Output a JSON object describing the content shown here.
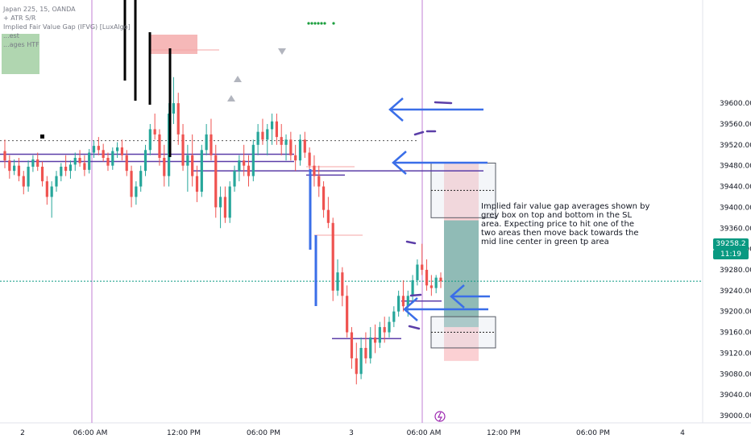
{
  "legend": {
    "symbol": "Japan 225, 15, OANDA",
    "line2": "+ ATR S/R",
    "line3": "Implied Fair Value Gap (IFVG) [LuxAlgo]",
    "line4": "...est",
    "line5": "...ages HTF"
  },
  "price_tag": {
    "price": "39258.2",
    "countdown": "11:19"
  },
  "annotation_text": "Implied fair value gap averages shown by grey box on top and bottom in the SL area. Expecting price to hit one of the two areas then move back towards the mid line center in green tp area",
  "colors": {
    "up": "#26a69a",
    "down": "#ef5350",
    "arrow": "#3a6ee8",
    "line": "#5b3ea8",
    "session": "#c17fd6",
    "tp": "#26a69a",
    "sl": "#f7a9ae",
    "current": "#089981"
  },
  "chart_data": {
    "type": "candlestick",
    "symbol": "Japan 225, 15, OANDA",
    "y_ticks": [
      39000,
      39040,
      39080,
      39120,
      39160,
      39200,
      39240,
      39280,
      39320,
      39360,
      39400,
      39440,
      39480,
      39520,
      39560,
      39600
    ],
    "ylim": [
      38990,
      39630
    ],
    "x_ticks": [
      "2",
      "06:00 AM",
      "12:00 PM",
      "06:00 PM",
      "3",
      "06:00 AM",
      "12:00 PM",
      "06:00 PM",
      "4"
    ],
    "current_price": 39258.2,
    "countdown": "11:19",
    "candles": [
      [
        39508,
        39530,
        39475,
        39490
      ],
      [
        39490,
        39500,
        39455,
        39470
      ],
      [
        39470,
        39492,
        39462,
        39480
      ],
      [
        39480,
        39495,
        39450,
        39460
      ],
      [
        39460,
        39470,
        39425,
        39440
      ],
      [
        39440,
        39490,
        39430,
        39478
      ],
      [
        39478,
        39500,
        39468,
        39492
      ],
      [
        39492,
        39505,
        39470,
        39478
      ],
      [
        39478,
        39488,
        39440,
        39450
      ],
      [
        39450,
        39460,
        39405,
        39420
      ],
      [
        39420,
        39450,
        39380,
        39440
      ],
      [
        39440,
        39470,
        39430,
        39460
      ],
      [
        39460,
        39485,
        39450,
        39478
      ],
      [
        39478,
        39500,
        39460,
        39470
      ],
      [
        39470,
        39490,
        39455,
        39482
      ],
      [
        39482,
        39505,
        39470,
        39495
      ],
      [
        39495,
        39510,
        39478,
        39485
      ],
      [
        39485,
        39500,
        39460,
        39472
      ],
      [
        39472,
        39512,
        39465,
        39505
      ],
      [
        39505,
        39528,
        39495,
        39518
      ],
      [
        39518,
        39535,
        39500,
        39510
      ],
      [
        39510,
        39522,
        39488,
        39495
      ],
      [
        39495,
        39505,
        39470,
        39480
      ],
      [
        39480,
        39515,
        39472,
        39508
      ],
      [
        39508,
        39525,
        39495,
        39515
      ],
      [
        39515,
        39530,
        39490,
        39500
      ],
      [
        39500,
        39510,
        39460,
        39470
      ],
      [
        39470,
        39480,
        39400,
        39420
      ],
      [
        39420,
        39450,
        39405,
        39440
      ],
      [
        39440,
        39480,
        39430,
        39470
      ],
      [
        39470,
        39520,
        39460,
        39510
      ],
      [
        39510,
        39560,
        39500,
        39550
      ],
      [
        39550,
        39580,
        39530,
        39540
      ],
      [
        39540,
        39550,
        39480,
        39495
      ],
      [
        39495,
        39520,
        39440,
        39460
      ],
      [
        39460,
        39600,
        39440,
        39580
      ],
      [
        39580,
        39650,
        39560,
        39600
      ],
      [
        39600,
        39620,
        39520,
        39540
      ],
      [
        39540,
        39560,
        39470,
        39480
      ],
      [
        39480,
        39520,
        39430,
        39500
      ],
      [
        39500,
        39540,
        39440,
        39460
      ],
      [
        39460,
        39480,
        39410,
        39430
      ],
      [
        39430,
        39520,
        39420,
        39510
      ],
      [
        39510,
        39560,
        39500,
        39540
      ],
      [
        39540,
        39570,
        39490,
        39500
      ],
      [
        39500,
        39520,
        39380,
        39400
      ],
      [
        39400,
        39440,
        39360,
        39420
      ],
      [
        39420,
        39440,
        39370,
        39380
      ],
      [
        39380,
        39450,
        39370,
        39440
      ],
      [
        39440,
        39480,
        39430,
        39470
      ],
      [
        39470,
        39500,
        39450,
        39490
      ],
      [
        39490,
        39520,
        39460,
        39480
      ],
      [
        39480,
        39500,
        39440,
        39460
      ],
      [
        39460,
        39530,
        39450,
        39520
      ],
      [
        39520,
        39560,
        39500,
        39545
      ],
      [
        39545,
        39570,
        39520,
        39530
      ],
      [
        39530,
        39560,
        39500,
        39550
      ],
      [
        39550,
        39580,
        39520,
        39565
      ],
      [
        39565,
        39580,
        39520,
        39535
      ],
      [
        39535,
        39560,
        39500,
        39520
      ],
      [
        39520,
        39540,
        39490,
        39530
      ],
      [
        39530,
        39545,
        39490,
        39500
      ],
      [
        39500,
        39520,
        39470,
        39490
      ],
      [
        39490,
        39540,
        39480,
        39530
      ],
      [
        39530,
        39545,
        39495,
        39505
      ],
      [
        39505,
        39515,
        39470,
        39480
      ],
      [
        39480,
        39500,
        39440,
        39460
      ],
      [
        39460,
        39480,
        39420,
        39440
      ],
      [
        39440,
        39450,
        39380,
        39395
      ],
      [
        39395,
        39420,
        39360,
        39370
      ],
      [
        39370,
        39380,
        39220,
        39240
      ],
      [
        39240,
        39300,
        39230,
        39275
      ],
      [
        39275,
        39285,
        39210,
        39230
      ],
      [
        39230,
        39250,
        39150,
        39160
      ],
      [
        39160,
        39170,
        39090,
        39110
      ],
      [
        39110,
        39140,
        39060,
        39080
      ],
      [
        39080,
        39150,
        39070,
        39130
      ],
      [
        39130,
        39160,
        39100,
        39110
      ],
      [
        39110,
        39170,
        39100,
        39150
      ],
      [
        39150,
        39175,
        39120,
        39140
      ],
      [
        39140,
        39180,
        39130,
        39170
      ],
      [
        39170,
        39190,
        39140,
        39160
      ],
      [
        39160,
        39190,
        39150,
        39180
      ],
      [
        39180,
        39210,
        39170,
        39200
      ],
      [
        39200,
        39240,
        39190,
        39230
      ],
      [
        39230,
        39260,
        39200,
        39210
      ],
      [
        39210,
        39240,
        39190,
        39230
      ],
      [
        39230,
        39270,
        39220,
        39260
      ],
      [
        39260,
        39300,
        39250,
        39290
      ],
      [
        39290,
        39330,
        39270,
        39280
      ],
      [
        39280,
        39300,
        39240,
        39250
      ],
      [
        39250,
        39270,
        39230,
        39245
      ],
      [
        39245,
        39270,
        39235,
        39265
      ],
      [
        39265,
        39275,
        39245,
        39258
      ]
    ],
    "horizontal_levels": [
      {
        "y": 39528,
        "style": "dotted",
        "color": "#555555"
      },
      {
        "y": 39502,
        "style": "solid",
        "color": "#5b3ea8"
      },
      {
        "y": 39488,
        "style": "solid",
        "color": "#5b3ea8"
      },
      {
        "y": 39470,
        "style": "solid",
        "color": "#5b3ea8"
      },
      {
        "y": 39259,
        "style": "dotted",
        "color": "#089981"
      }
    ],
    "tp_zone": {
      "from": 39170,
      "to": 39375,
      "color": "#26a69a"
    },
    "sl_zone": {
      "from": 39105,
      "to": 39485,
      "color": "#f7a9ae"
    },
    "ifvg_boxes": [
      {
        "from": 39380,
        "to": 39485
      },
      {
        "from": 39130,
        "to": 39190
      }
    ],
    "sessions": [
      "06:00 AM",
      "06:00 AM"
    ]
  }
}
